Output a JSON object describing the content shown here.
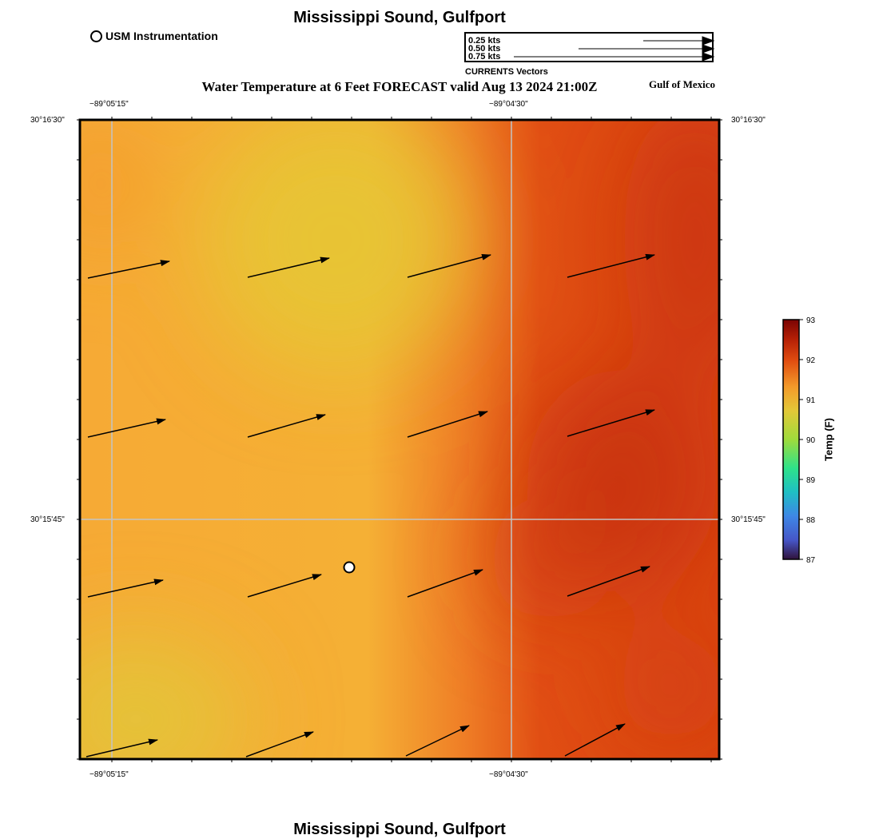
{
  "header": {
    "title": "Mississippi Sound, Gulfport",
    "forecast_title": "Water Temperature at 6 Feet FORECAST valid Aug 13 2024 21:00Z",
    "region": "Gulf of Mexico"
  },
  "footer": {
    "title": "Mississippi Sound, Gulfport"
  },
  "legend": {
    "station_label": "USM Instrumentation",
    "vector_scale": [
      "0.25 kts",
      "0.50 kts",
      "0.75 kts"
    ],
    "vector_title": "CURRENTS Vectors"
  },
  "axes": {
    "lon_ticks": [
      "−89°05'15\"",
      "−89°04'30\""
    ],
    "lat_ticks": [
      "30°16'30\"",
      "30°15'45\""
    ]
  },
  "colorbar": {
    "title": "Temp (F)",
    "ticks": [
      "93",
      "92",
      "91",
      "90",
      "89",
      "88",
      "87"
    ],
    "min": 87,
    "max": 93
  },
  "map": {
    "station": "USM Instrumentation",
    "current_vector_rows": 4,
    "current_vector_cols": 4
  }
}
